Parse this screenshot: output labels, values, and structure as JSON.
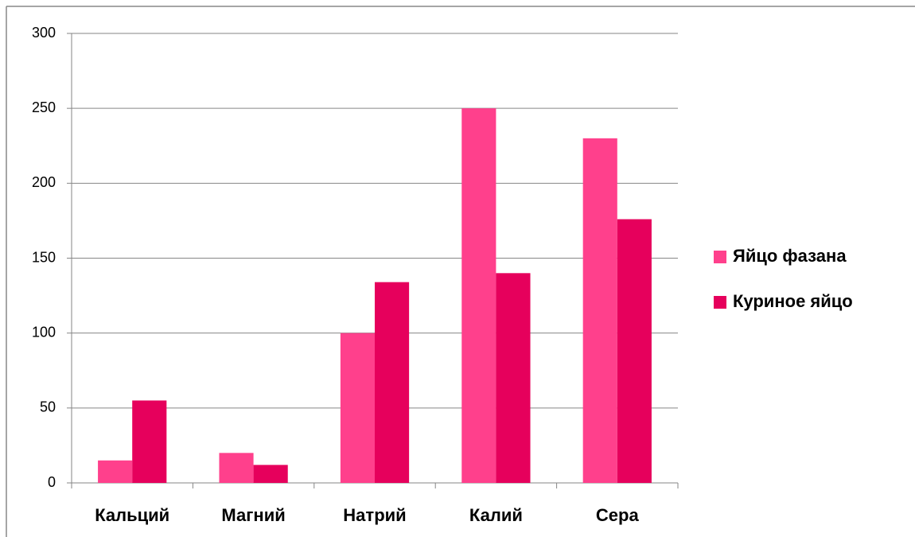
{
  "chart_data": {
    "type": "bar",
    "categories": [
      "Кальций",
      "Магний",
      "Натрий",
      "Калий",
      "Сера"
    ],
    "series": [
      {
        "name": "Яйцо фазана",
        "color": "#ff408c",
        "values": [
          15,
          20,
          100,
          250,
          230
        ]
      },
      {
        "name": "Куриное яйцо",
        "color": "#e6005c",
        "values": [
          55,
          12,
          134,
          140,
          176
        ]
      }
    ],
    "ylim": [
      0,
      300
    ],
    "yticks": [
      0,
      50,
      100,
      150,
      200,
      250,
      300
    ],
    "grid": true,
    "legend": "right"
  }
}
